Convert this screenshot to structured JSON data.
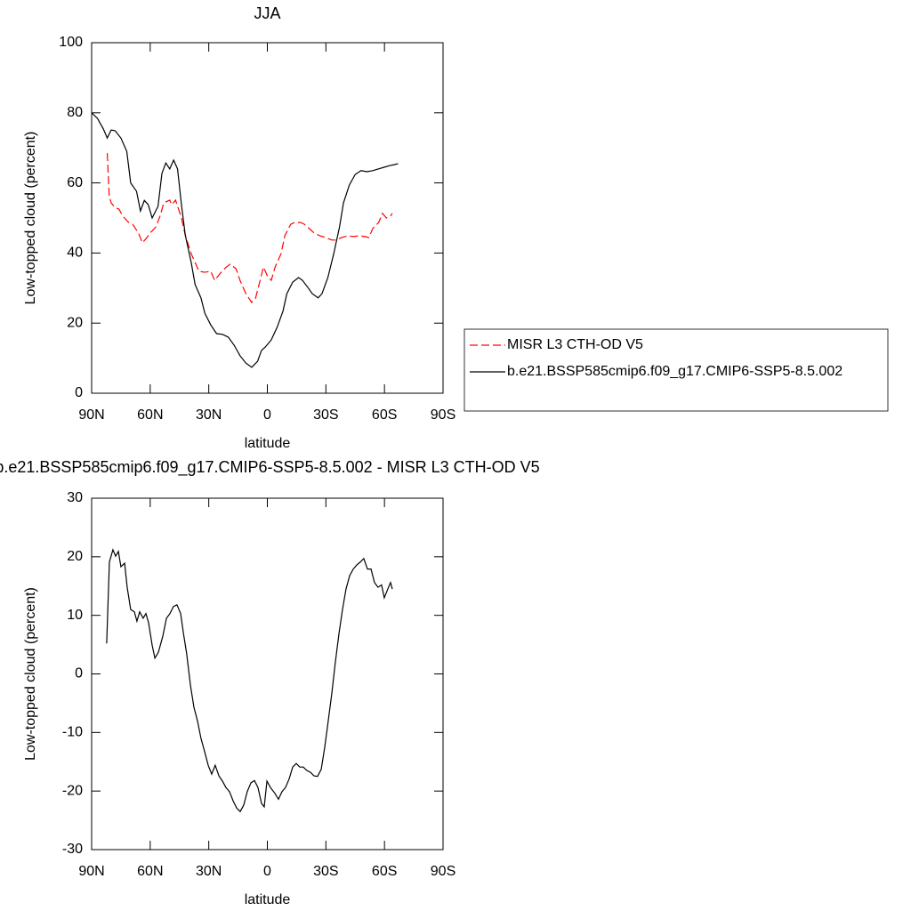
{
  "chart_data": [
    {
      "type": "line",
      "title": "JJA",
      "xlabel": "latitude",
      "ylabel": "Low-topped cloud (percent)",
      "xlim": [
        90,
        -90
      ],
      "xticks": [
        {
          "value": 90,
          "label": "90N"
        },
        {
          "value": 60,
          "label": "60N"
        },
        {
          "value": 30,
          "label": "30N"
        },
        0,
        {
          "value": -30,
          "label": "30S"
        },
        {
          "value": -60,
          "label": "60S"
        },
        {
          "value": -90,
          "label": "90S"
        }
      ],
      "ylim": [
        0,
        100
      ],
      "yticks": [
        0,
        20,
        40,
        60,
        80,
        100
      ],
      "legend": "right",
      "series": [
        {
          "name": "MISR L3 CTH-OD V5",
          "color": "#ff0000",
          "dash": "dashed",
          "x": [
            82,
            81,
            80,
            78,
            76,
            74,
            71,
            69,
            66,
            64,
            62,
            60,
            57,
            55,
            53,
            50,
            49,
            47,
            44,
            42,
            39,
            37,
            35,
            32,
            29,
            27,
            24,
            21,
            19,
            16,
            14,
            11,
            8,
            6,
            4,
            2,
            0,
            -2,
            -4,
            -7,
            -9,
            -12,
            -14,
            -17,
            -19,
            -22,
            -24,
            -27,
            -30,
            -33,
            -35,
            -38,
            -41,
            -44,
            -47,
            -50,
            -52,
            -54,
            -57,
            -59,
            -61,
            -63,
            -64
          ],
          "values": [
            68.5,
            56.3,
            54.3,
            53,
            52.5,
            50.5,
            48.7,
            48.2,
            45.7,
            42.9,
            44.2,
            45.7,
            47.5,
            50.5,
            54.3,
            55.1,
            53.8,
            55.1,
            50,
            45,
            39.8,
            37.3,
            34.8,
            34.5,
            34.8,
            32.2,
            34.3,
            36,
            36.8,
            35.5,
            32.2,
            28.4,
            25.9,
            27.2,
            31.5,
            36,
            33.5,
            32.2,
            36,
            39.8,
            45,
            48.2,
            48.7,
            48.7,
            48.2,
            46.7,
            45.7,
            44.9,
            44.4,
            43.7,
            43.7,
            44.4,
            44.9,
            44.7,
            44.9,
            44.7,
            44.4,
            47,
            48.7,
            51.3,
            50,
            50.5,
            51.3
          ]
        },
        {
          "name": "b.e21.BSSP585cmip6.f09_g17.CMIP6-SSP5-8.5.002",
          "color": "#000000",
          "dash": "solid",
          "x": [
            90,
            87,
            84,
            82,
            80,
            78,
            75,
            72,
            70,
            67,
            65,
            63,
            61,
            59,
            56,
            54,
            52,
            50,
            48,
            46,
            44,
            42,
            39,
            37,
            34,
            32,
            29,
            26,
            23,
            20,
            17,
            14,
            11,
            8,
            5,
            3,
            1,
            -2,
            -5,
            -8,
            -10,
            -13,
            -16,
            -18,
            -21,
            -23,
            -26,
            -28,
            -31,
            -34,
            -37,
            -39,
            -42,
            -45,
            -48,
            -51,
            -54,
            -57,
            -60,
            -63,
            -65,
            -67
          ],
          "values": [
            80,
            78.4,
            75.4,
            72.8,
            75.1,
            74.9,
            72.8,
            69,
            60,
            57.6,
            52,
            55,
            53.8,
            50,
            53.3,
            62.7,
            65.7,
            64,
            66.5,
            64,
            53.8,
            45,
            37.3,
            31,
            27.2,
            22.8,
            19.5,
            17,
            16.8,
            16,
            13.7,
            10.7,
            8.6,
            7.4,
            9.1,
            12.2,
            13.2,
            15.2,
            18.8,
            23.4,
            28.4,
            31.7,
            33,
            32.2,
            30,
            28.4,
            27.2,
            28.4,
            33,
            39.8,
            47.5,
            54.3,
            59.4,
            62.4,
            63.5,
            63.2,
            63.5,
            64,
            64.5,
            65,
            65.2,
            65.5
          ]
        }
      ]
    },
    {
      "type": "line",
      "title": "b.e21.BSSP585cmip6.f09_g17.CMIP6-SSP5-8.5.002 - MISR L3 CTH-OD V5",
      "xlabel": "latitude",
      "ylabel": "Low-topped cloud (percent)",
      "xlim": [
        90,
        -90
      ],
      "xticks": [
        {
          "value": 90,
          "label": "90N"
        },
        {
          "value": 60,
          "label": "60N"
        },
        {
          "value": 30,
          "label": "30N"
        },
        0,
        {
          "value": -30,
          "label": "30S"
        },
        {
          "value": -60,
          "label": "60S"
        },
        {
          "value": -90,
          "label": "90S"
        }
      ],
      "ylim": [
        -30,
        30
      ],
      "yticks": [
        -30,
        -20,
        -10,
        0,
        10,
        20,
        30
      ],
      "series": [
        {
          "color": "#000000",
          "dash": "solid",
          "x": [
            82.3,
            80.9,
            79.1,
            77.7,
            76.3,
            75,
            73.1,
            71.8,
            70,
            68.1,
            66.8,
            65.4,
            63.6,
            62.2,
            60.8,
            59,
            57.6,
            55.8,
            53.5,
            51.7,
            49.9,
            48.1,
            46.3,
            44.4,
            43.1,
            41.3,
            39.4,
            37.6,
            35.8,
            34,
            32.1,
            30.3,
            28.5,
            26.7,
            24.8,
            23,
            21.2,
            19.4,
            17.5,
            15.7,
            13.9,
            12.1,
            10.3,
            8.4,
            6.6,
            4.8,
            3,
            1.6,
            0.2,
            -1.6,
            -3.9,
            -5.7,
            -7.5,
            -9.3,
            -11.2,
            -13,
            -14.8,
            -16.6,
            -18.4,
            -20.3,
            -22.1,
            -23.9,
            -25.7,
            -27.6,
            -29.4,
            -31.2,
            -33,
            -34.8,
            -36.7,
            -38.5,
            -40.3,
            -42.2,
            -44,
            -45.8,
            -47.6,
            -49.4,
            -51.3,
            -53.1,
            -54.9,
            -56.7,
            -58.5,
            -59.9,
            -61.7,
            -63.1,
            -64
          ],
          "values": [
            5.2,
            19.1,
            21.2,
            20.1,
            20.9,
            18.3,
            18.9,
            14.8,
            11,
            10.6,
            9,
            10.6,
            9.5,
            10.3,
            8.7,
            4.9,
            2.7,
            3.7,
            6.5,
            9.5,
            10.3,
            11.5,
            11.8,
            10.3,
            7.2,
            3.4,
            -1.9,
            -5.7,
            -8,
            -11,
            -13.3,
            -15.6,
            -17.1,
            -15.6,
            -17.4,
            -18.3,
            -19.4,
            -20.1,
            -21.7,
            -22.9,
            -23.5,
            -22.4,
            -20.1,
            -18.6,
            -18.2,
            -19.4,
            -22.1,
            -22.7,
            -18.3,
            -19.4,
            -20.4,
            -21.4,
            -20.1,
            -19.4,
            -17.9,
            -15.9,
            -15.3,
            -15.9,
            -15.9,
            -16.5,
            -16.8,
            -17.4,
            -17.5,
            -16.3,
            -12.5,
            -8,
            -3.4,
            1.9,
            6.9,
            11,
            14.5,
            16.8,
            17.9,
            18.6,
            19.1,
            19.7,
            17.9,
            17.9,
            15.6,
            14.8,
            15.2,
            13,
            14.5,
            15.6,
            14.5
          ]
        }
      ]
    }
  ]
}
